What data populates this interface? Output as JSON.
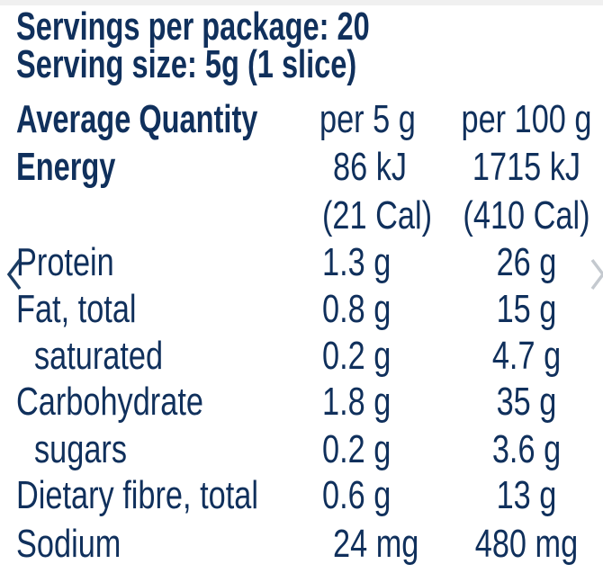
{
  "label": {
    "servings_per_package": "Servings per package: 20",
    "serving_size": "Serving size: 5g (1 slice)",
    "header": {
      "name": "Average Quantity",
      "col1": "per 5 g",
      "col2": "per 100 g"
    },
    "rows": [
      {
        "name": "Energy",
        "col1": "86 kJ",
        "col2": "1715 kJ"
      },
      {
        "name": "",
        "col1": "(21 Cal)",
        "col2": "(410 Cal)"
      },
      {
        "name": "Protein",
        "col1": "1.3 g",
        "col2": "26 g"
      },
      {
        "name": "Fat, total",
        "col1": "0.8 g",
        "col2": "15 g"
      },
      {
        "name": "saturated",
        "col1": "0.2 g",
        "col2": "4.7 g"
      },
      {
        "name": "Carbohydrate",
        "col1": "1.8 g",
        "col2": "35 g"
      },
      {
        "name": "sugars",
        "col1": "0.2 g",
        "col2": "3.6 g"
      },
      {
        "name": "Dietary fibre, total",
        "col1": "0.6 g",
        "col2": "13 g"
      },
      {
        "name": "Sodium",
        "col1": "24 mg",
        "col2": "480 mg"
      }
    ]
  },
  "carousel": {
    "prev_icon": "chevron-left-icon",
    "next_icon": "chevron-right-icon"
  },
  "colors": {
    "text": "#10305c",
    "prev_arrow": "#1c3d63",
    "next_arrow": "#c4c9cf"
  }
}
